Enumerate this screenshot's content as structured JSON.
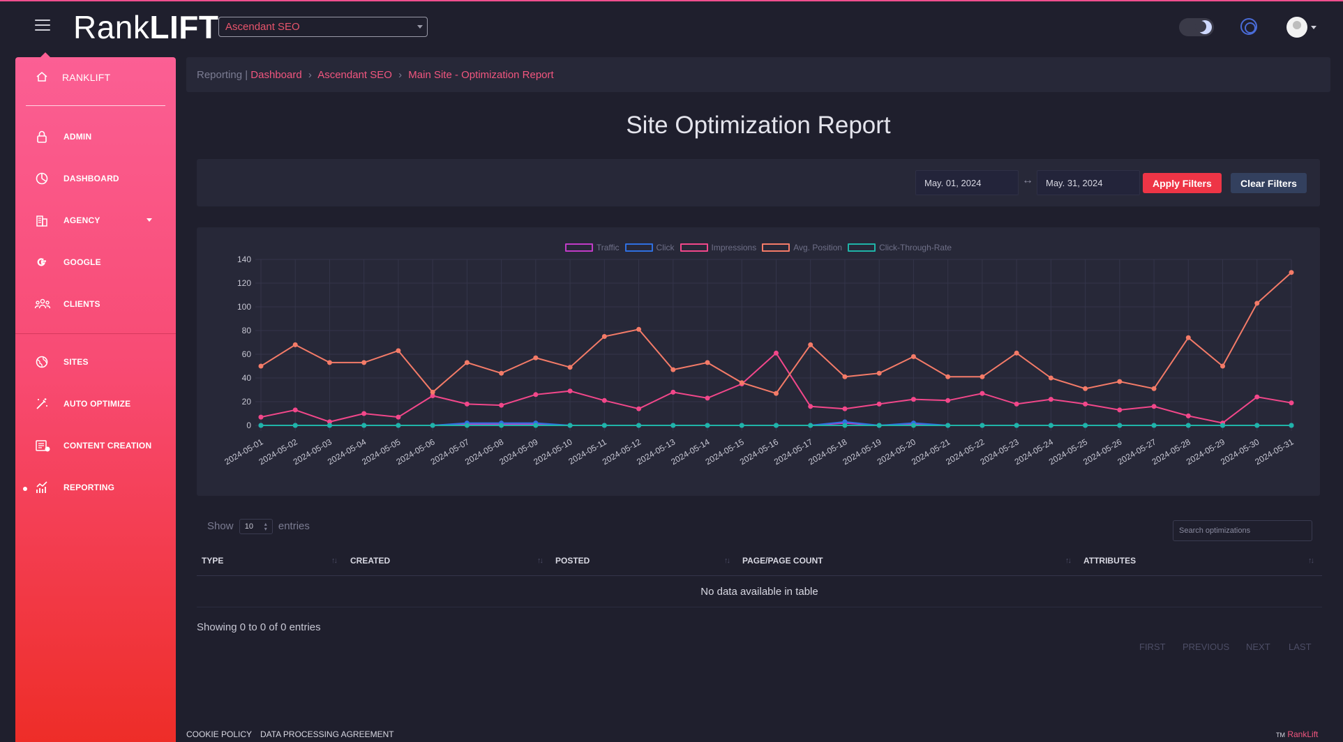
{
  "header": {
    "logo_regular": "Rank",
    "logo_bold": "LIFT",
    "agency_selected": "Ascendant SEO"
  },
  "sidebar": {
    "brand": "RANKLIFT",
    "items": [
      {
        "label": "ADMIN",
        "icon": "lock-icon"
      },
      {
        "label": "DASHBOARD",
        "icon": "pie-chart-icon"
      },
      {
        "label": "AGENCY",
        "icon": "building-icon"
      },
      {
        "label": "GOOGLE",
        "icon": "google-icon"
      },
      {
        "label": "CLIENTS",
        "icon": "users-icon"
      },
      {
        "label": "SITES",
        "icon": "globe-icon"
      },
      {
        "label": "AUTO OPTIMIZE",
        "icon": "magic-wand-icon"
      },
      {
        "label": "CONTENT CREATION",
        "icon": "newspaper-icon"
      },
      {
        "label": "REPORTING",
        "icon": "chart-icon"
      }
    ]
  },
  "breadcrumb": {
    "section": "Reporting",
    "divider": "|",
    "dashboard": "Dashboard",
    "sep": "›",
    "agency": "Ascendant SEO",
    "page": "Main Site - Optimization Report"
  },
  "page_title": "Site Optimization Report",
  "filters": {
    "start_date": "May. 01, 2024",
    "end_date": "May. 31, 2024",
    "range_arrow": "↔",
    "apply_label": "Apply Filters",
    "clear_label": "Clear Filters"
  },
  "chart_data": {
    "type": "line",
    "title": "",
    "xlabel": "",
    "ylabel": "",
    "ylim": [
      0,
      140
    ],
    "yticks": [
      0,
      20,
      40,
      60,
      80,
      100,
      120,
      140
    ],
    "grid": true,
    "legend_position": "top-center",
    "x": [
      "2024-05-01",
      "2024-05-02",
      "2024-05-03",
      "2024-05-04",
      "2024-05-05",
      "2024-05-06",
      "2024-05-07",
      "2024-05-08",
      "2024-05-09",
      "2024-05-10",
      "2024-05-11",
      "2024-05-12",
      "2024-05-13",
      "2024-05-14",
      "2024-05-15",
      "2024-05-16",
      "2024-05-17",
      "2024-05-18",
      "2024-05-19",
      "2024-05-20",
      "2024-05-21",
      "2024-05-22",
      "2024-05-23",
      "2024-05-24",
      "2024-05-25",
      "2024-05-26",
      "2024-05-27",
      "2024-05-28",
      "2024-05-29",
      "2024-05-30",
      "2024-05-31"
    ],
    "series": [
      {
        "name": "Traffic",
        "color": "#c13bc7",
        "values": [
          0,
          0,
          0,
          0,
          0,
          0,
          1,
          1,
          1,
          0,
          0,
          0,
          0,
          0,
          0,
          0,
          0,
          2,
          0,
          1,
          0,
          0,
          0,
          0,
          0,
          0,
          0,
          0,
          0,
          0,
          0
        ]
      },
      {
        "name": "Click",
        "color": "#2f6fe0",
        "values": [
          0,
          0,
          0,
          0,
          0,
          0,
          2,
          2,
          2,
          0,
          0,
          0,
          0,
          0,
          0,
          0,
          0,
          3,
          0,
          2,
          0,
          0,
          0,
          0,
          0,
          0,
          0,
          0,
          0,
          0,
          0
        ]
      },
      {
        "name": "Impressions",
        "color": "#f2478a",
        "values": [
          7,
          13,
          3,
          10,
          7,
          25,
          18,
          17,
          26,
          29,
          21,
          14,
          28,
          23,
          35,
          61,
          16,
          14,
          18,
          22,
          21,
          27,
          18,
          22,
          18,
          13,
          16,
          8,
          2,
          24,
          19
        ]
      },
      {
        "name": "Avg. Position",
        "color": "#f47b68",
        "values": [
          50,
          68,
          53,
          53,
          63,
          28,
          53,
          44,
          57,
          49,
          75,
          81,
          47,
          53,
          36,
          27,
          68,
          41,
          44,
          58,
          41,
          41,
          61,
          40,
          31,
          37,
          31,
          74,
          50,
          103,
          129
        ]
      },
      {
        "name": "Click-Through-Rate",
        "color": "#1fb4a8",
        "values": [
          0,
          0,
          0,
          0,
          0,
          0,
          0,
          0,
          0,
          0,
          0,
          0,
          0,
          0,
          0,
          0,
          0,
          0,
          0,
          0,
          0,
          0,
          0,
          0,
          0,
          0,
          0,
          0,
          0,
          0,
          0
        ]
      }
    ]
  },
  "table": {
    "show_label": "Show",
    "entries_label": "entries",
    "page_size": "10",
    "search_placeholder": "Search optimizations",
    "columns": [
      "TYPE",
      "CREATED",
      "POSTED",
      "PAGE/PAGE COUNT",
      "ATTRIBUTES"
    ],
    "empty_text": "No data available in table",
    "info": "Showing 0 to 0 of 0 entries",
    "pager": {
      "first": "FIRST",
      "previous": "PREVIOUS",
      "next": "NEXT",
      "last": "LAST"
    }
  },
  "footer": {
    "cookie": "COOKIE POLICY",
    "dpa": "DATA PROCESSING AGREEMENT",
    "tm": "TM",
    "brand": "RankLift"
  }
}
